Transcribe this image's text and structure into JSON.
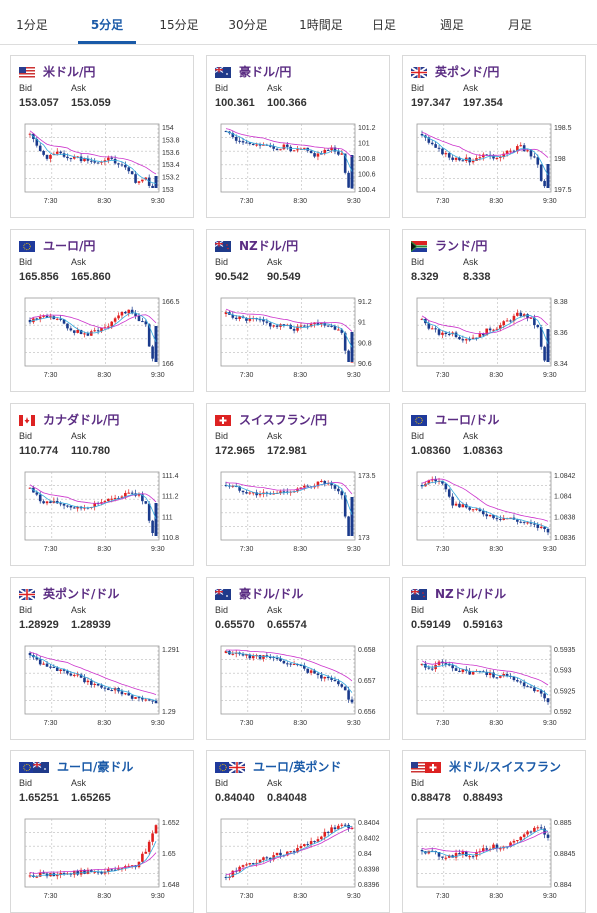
{
  "tabs": [
    {
      "label": "1分足",
      "active": false
    },
    {
      "label": "5分足",
      "active": true
    },
    {
      "label": "15分足",
      "active": false
    },
    {
      "label": "30分足",
      "active": false
    },
    {
      "label": "1時間足",
      "active": false
    },
    {
      "label": "日足",
      "active": false
    },
    {
      "label": "週足",
      "active": false
    },
    {
      "label": "月足",
      "active": false
    }
  ],
  "quote_labels": {
    "bid": "Bid",
    "ask": "Ask"
  },
  "x_ticks": [
    "7:30",
    "8:30",
    "9:30"
  ],
  "colors": {
    "up": "#e02020",
    "down": "#1a3a8c",
    "ma_long": "#cc33cc",
    "ma_short": "#33aadd",
    "title_purple": "#5b2d83",
    "title_blue": "#1a5aa8"
  },
  "cards": [
    {
      "name": "米ドル/円",
      "flag": "us-flag",
      "bid": "153.057",
      "ask": "153.059",
      "chart_data": {
        "type": "candlestick",
        "y_ticks": [
          "154",
          "153.8",
          "153.6",
          "153.4",
          "153.2",
          "153"
        ],
        "shape": [
          0.9,
          0.6,
          0.5,
          0.6,
          0.5,
          0.5,
          0.45,
          0.4,
          0.5,
          0.4,
          0.3,
          0.1,
          0.2,
          -0.6
        ],
        "seed": 1
      }
    },
    {
      "name": "豪ドル/円",
      "flag": "au-flag",
      "bid": "100.361",
      "ask": "100.366",
      "chart_data": {
        "type": "candlestick",
        "y_ticks": [
          "101.2",
          "101",
          "100.8",
          "100.6",
          "100.4"
        ],
        "shape": [
          0.95,
          0.8,
          0.75,
          0.75,
          0.7,
          0.65,
          0.7,
          0.6,
          0.65,
          0.55,
          0.6,
          0.65,
          0.55,
          -0.5
        ],
        "seed": 2
      }
    },
    {
      "name": "英ポンド/円",
      "flag": "uk-flag",
      "bid": "197.347",
      "ask": "197.354",
      "chart_data": {
        "type": "candlestick",
        "y_ticks": [
          "198.5",
          "198",
          "197.5"
        ],
        "shape": [
          0.9,
          0.7,
          0.6,
          0.5,
          0.5,
          0.45,
          0.55,
          0.5,
          0.55,
          0.6,
          0.7,
          0.6,
          0.4,
          -0.6
        ],
        "seed": 3
      }
    },
    {
      "name": "ユーロ/円",
      "flag": "eu-flag",
      "bid": "165.856",
      "ask": "165.860",
      "chart_data": {
        "type": "candlestick",
        "y_ticks": [
          "166.5",
          "166"
        ],
        "shape": [
          0.7,
          0.75,
          0.75,
          0.7,
          0.55,
          0.5,
          0.45,
          0.55,
          0.6,
          0.8,
          0.85,
          0.75,
          0.6,
          -0.6
        ],
        "seed": 4
      }
    },
    {
      "name": "NZドル/円",
      "flag": "nz-flag",
      "bid": "90.542",
      "ask": "90.549",
      "chart_data": {
        "type": "candlestick",
        "y_ticks": [
          "91.2",
          "91",
          "90.8",
          "90.6"
        ],
        "shape": [
          0.8,
          0.75,
          0.7,
          0.7,
          0.65,
          0.6,
          0.6,
          0.55,
          0.6,
          0.65,
          0.65,
          0.6,
          0.5,
          -0.6
        ],
        "seed": 5
      }
    },
    {
      "name": "ランド/円",
      "flag": "za-flag",
      "bid": "8.329",
      "ask": "8.338",
      "chart_data": {
        "type": "candlestick",
        "y_ticks": [
          "8.38",
          "8.36",
          "8.34"
        ],
        "shape": [
          0.7,
          0.55,
          0.45,
          0.5,
          0.4,
          0.4,
          0.45,
          0.55,
          0.6,
          0.7,
          0.8,
          0.75,
          0.55,
          -0.5
        ],
        "seed": 6
      }
    },
    {
      "name": "カナダドル/円",
      "flag": "ca-flag",
      "bid": "110.774",
      "ask": "110.780",
      "chart_data": {
        "type": "candlestick",
        "y_ticks": [
          "111.4",
          "111.2",
          "111",
          "110.8"
        ],
        "shape": [
          0.8,
          0.6,
          0.55,
          0.55,
          0.5,
          0.45,
          0.5,
          0.55,
          0.6,
          0.6,
          0.75,
          0.7,
          0.55,
          -0.5
        ],
        "seed": 7
      }
    },
    {
      "name": "スイスフラン/円",
      "flag": "ch-flag",
      "bid": "172.965",
      "ask": "172.981",
      "chart_data": {
        "type": "candlestick",
        "y_ticks": [
          "173.5",
          "173"
        ],
        "shape": [
          0.85,
          0.8,
          0.75,
          0.7,
          0.7,
          0.7,
          0.75,
          0.75,
          0.8,
          0.85,
          0.9,
          0.8,
          0.65,
          -0.5
        ],
        "seed": 8
      }
    },
    {
      "name": "ユーロ/ドル",
      "flag": "eu-flag",
      "bid": "1.08360",
      "ask": "1.08363",
      "chart_data": {
        "type": "candlestick",
        "y_ticks": [
          "1.0842",
          "1.084",
          "1.0838",
          "1.0836"
        ],
        "shape": [
          0.85,
          0.95,
          0.9,
          0.55,
          0.5,
          0.45,
          0.4,
          0.35,
          0.3,
          0.3,
          0.25,
          0.2,
          0.15,
          0.1
        ],
        "seed": 9
      }
    },
    {
      "name": "英ポンド/ドル",
      "flag": "uk-flag",
      "bid": "1.28929",
      "ask": "1.28939",
      "chart_data": {
        "type": "candlestick",
        "y_ticks": [
          "1.291",
          "1.29"
        ],
        "shape": [
          0.95,
          0.8,
          0.75,
          0.65,
          0.6,
          0.55,
          0.45,
          0.4,
          0.35,
          0.35,
          0.25,
          0.2,
          0.15,
          0.12
        ],
        "seed": 10
      }
    },
    {
      "name": "豪ドル/ドル",
      "flag": "au-flag",
      "bid": "0.65570",
      "ask": "0.65574",
      "chart_data": {
        "type": "candlestick",
        "y_ticks": [
          "0.658",
          "0.657",
          "0.656"
        ],
        "shape": [
          0.95,
          0.95,
          0.9,
          0.9,
          0.88,
          0.85,
          0.8,
          0.75,
          0.7,
          0.6,
          0.55,
          0.5,
          0.4,
          0.1
        ],
        "seed": 11
      }
    },
    {
      "name": "NZドル/ドル",
      "flag": "nz-flag",
      "bid": "0.59149",
      "ask": "0.59163",
      "chart_data": {
        "type": "candlestick",
        "y_ticks": [
          "0.5935",
          "0.593",
          "0.5925",
          "0.592"
        ],
        "shape": [
          0.75,
          0.7,
          0.8,
          0.7,
          0.65,
          0.6,
          0.65,
          0.6,
          0.55,
          0.6,
          0.45,
          0.4,
          0.3,
          0.15
        ],
        "seed": 12
      }
    },
    {
      "name": "ユーロ/豪ドル",
      "flag": "eu-au-flag",
      "bid": "1.65251",
      "ask": "1.65265",
      "chart_data": {
        "type": "candlestick",
        "y_ticks": [
          "1.652",
          "1.65",
          "1.648"
        ],
        "shape": [
          0.12,
          0.15,
          0.12,
          0.18,
          0.15,
          0.18,
          0.2,
          0.15,
          0.2,
          0.22,
          0.25,
          0.3,
          0.55,
          0.95
        ],
        "seed": 13
      }
    },
    {
      "name": "ユーロ/英ポンド",
      "flag": "eu-uk-flag",
      "bid": "0.84040",
      "ask": "0.84048",
      "chart_data": {
        "type": "candlestick",
        "y_ticks": [
          "0.8404",
          "0.8402",
          "0.84",
          "0.8398",
          "0.8396"
        ],
        "shape": [
          0.1,
          0.2,
          0.3,
          0.35,
          0.4,
          0.45,
          0.5,
          0.55,
          0.6,
          0.7,
          0.8,
          0.9,
          0.95,
          0.95
        ],
        "seed": 14
      }
    },
    {
      "name": "米ドル/スイスフラン",
      "flag": "us-ch-flag",
      "bid": "0.88478",
      "ask": "0.88493",
      "chart_data": {
        "type": "candlestick",
        "y_ticks": [
          "0.885",
          "0.8845",
          "0.884"
        ],
        "shape": [
          0.55,
          0.5,
          0.45,
          0.45,
          0.5,
          0.45,
          0.55,
          0.6,
          0.6,
          0.65,
          0.7,
          0.85,
          0.95,
          0.75
        ],
        "seed": 15
      }
    }
  ]
}
